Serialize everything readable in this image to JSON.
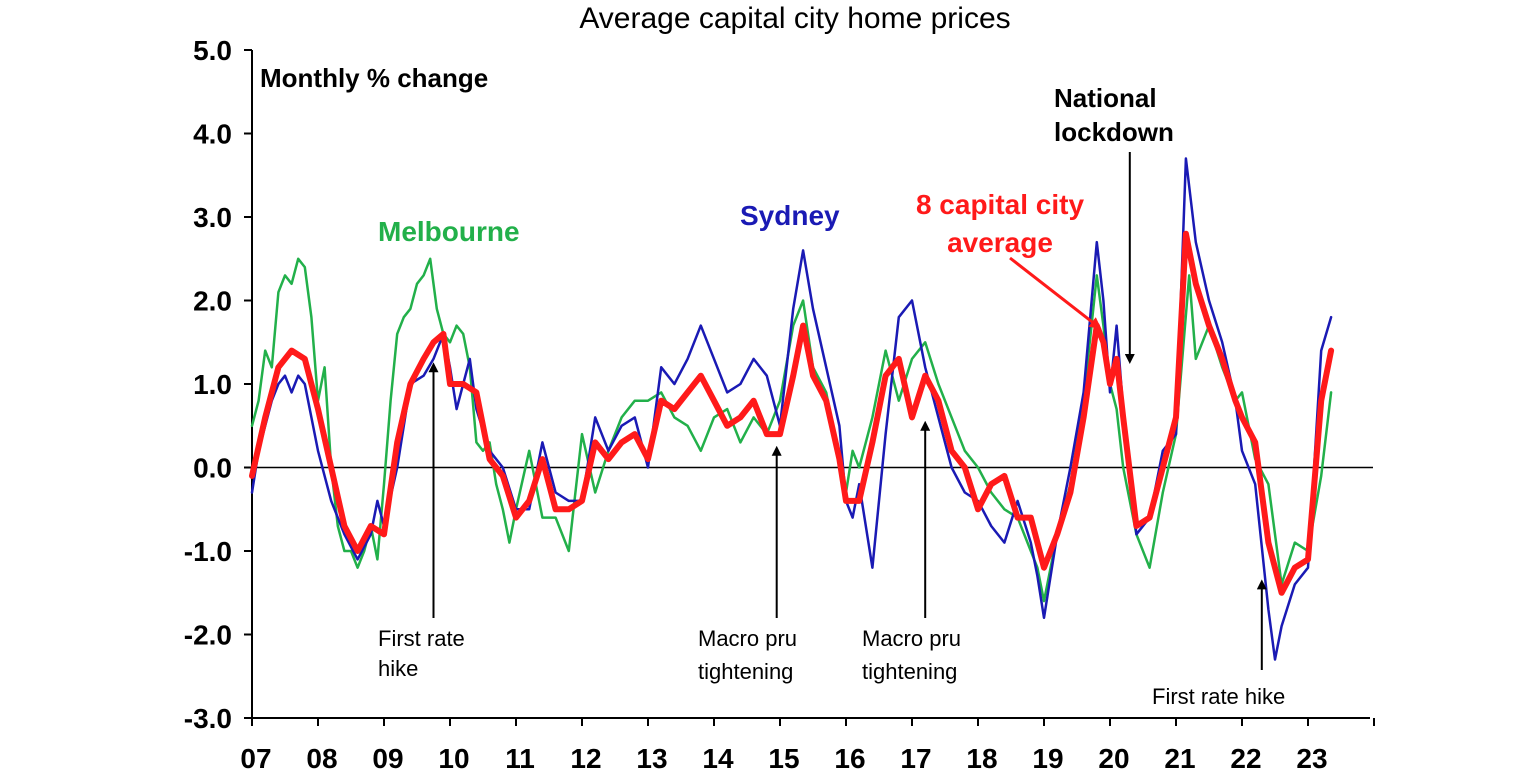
{
  "chart_data": {
    "type": "line",
    "title": "Average capital city home prices",
    "ylabel": "Monthly % change",
    "xlabel": "",
    "ylim": [
      -3.0,
      5.0
    ],
    "xlim": [
      2007.0,
      2024.0
    ],
    "y_ticks": [
      "5.0",
      "4.0",
      "3.0",
      "2.0",
      "1.0",
      "0.0",
      "-1.0",
      "-2.0",
      "-3.0"
    ],
    "y_tick_values": [
      5,
      4,
      3,
      2,
      1,
      0,
      -1,
      -2,
      -3
    ],
    "x_ticks": [
      "07",
      "08",
      "09",
      "10",
      "11",
      "12",
      "13",
      "14",
      "15",
      "16",
      "17",
      "18",
      "19",
      "20",
      "21",
      "22",
      "23"
    ],
    "grid": false,
    "series": [
      {
        "name": "Melbourne",
        "color": "#22b04a",
        "x": [
          2007.0,
          2007.1,
          2007.2,
          2007.3,
          2007.4,
          2007.5,
          2007.6,
          2007.7,
          2007.8,
          2007.9,
          2008.0,
          2008.1,
          2008.2,
          2008.3,
          2008.4,
          2008.5,
          2008.6,
          2008.7,
          2008.8,
          2008.9,
          2009.0,
          2009.1,
          2009.2,
          2009.3,
          2009.4,
          2009.5,
          2009.6,
          2009.7,
          2009.8,
          2009.9,
          2010.0,
          2010.1,
          2010.2,
          2010.3,
          2010.4,
          2010.5,
          2010.6,
          2010.7,
          2010.8,
          2010.9,
          2011.0,
          2011.2,
          2011.4,
          2011.6,
          2011.8,
          2012.0,
          2012.2,
          2012.4,
          2012.6,
          2012.8,
          2013.0,
          2013.2,
          2013.4,
          2013.6,
          2013.8,
          2014.0,
          2014.2,
          2014.4,
          2014.6,
          2014.8,
          2015.0,
          2015.2,
          2015.35,
          2015.5,
          2015.7,
          2015.9,
          2016.0,
          2016.1,
          2016.2,
          2016.4,
          2016.6,
          2016.8,
          2017.0,
          2017.2,
          2017.4,
          2017.6,
          2017.8,
          2018.0,
          2018.2,
          2018.4,
          2018.6,
          2018.8,
          2018.9,
          2019.0,
          2019.2,
          2019.4,
          2019.6,
          2019.8,
          2019.9,
          2020.0,
          2020.1,
          2020.2,
          2020.4,
          2020.6,
          2020.8,
          2021.0,
          2021.2,
          2021.3,
          2021.5,
          2021.7,
          2021.9,
          2022.0,
          2022.2,
          2022.4,
          2022.6,
          2022.8,
          2023.0,
          2023.2,
          2023.35
        ],
        "values": [
          0.5,
          0.8,
          1.4,
          1.2,
          2.1,
          2.3,
          2.2,
          2.5,
          2.4,
          1.8,
          0.8,
          1.2,
          0.0,
          -0.7,
          -1.0,
          -1.0,
          -1.2,
          -1.0,
          -0.7,
          -1.1,
          -0.2,
          0.8,
          1.6,
          1.8,
          1.9,
          2.2,
          2.3,
          2.5,
          1.9,
          1.6,
          1.5,
          1.7,
          1.6,
          1.2,
          0.3,
          0.2,
          0.3,
          -0.2,
          -0.5,
          -0.9,
          -0.5,
          0.2,
          -0.6,
          -0.6,
          -1.0,
          0.4,
          -0.3,
          0.2,
          0.6,
          0.8,
          0.8,
          0.9,
          0.6,
          0.5,
          0.2,
          0.6,
          0.7,
          0.3,
          0.6,
          0.4,
          0.8,
          1.7,
          2.0,
          1.2,
          0.9,
          0.1,
          -0.3,
          0.2,
          0.0,
          0.6,
          1.4,
          0.8,
          1.3,
          1.5,
          1.0,
          0.6,
          0.2,
          0.0,
          -0.3,
          -0.5,
          -0.6,
          -1.0,
          -1.2,
          -1.6,
          -0.8,
          -0.2,
          0.8,
          2.3,
          1.7,
          1.0,
          0.7,
          0.0,
          -0.8,
          -1.2,
          -0.3,
          0.4,
          2.3,
          1.3,
          1.7,
          1.2,
          0.8,
          0.9,
          0.1,
          -0.2,
          -1.4,
          -0.9,
          -1.0,
          -0.1,
          0.9
        ]
      },
      {
        "name": "Sydney",
        "color": "#1a1ab4",
        "x": [
          2007.0,
          2007.1,
          2007.2,
          2007.3,
          2007.4,
          2007.5,
          2007.6,
          2007.7,
          2007.8,
          2007.9,
          2008.0,
          2008.2,
          2008.4,
          2008.6,
          2008.8,
          2008.9,
          2009.0,
          2009.2,
          2009.4,
          2009.6,
          2009.75,
          2009.9,
          2010.0,
          2010.1,
          2010.2,
          2010.3,
          2010.4,
          2010.6,
          2010.8,
          2011.0,
          2011.2,
          2011.4,
          2011.6,
          2011.8,
          2012.0,
          2012.2,
          2012.4,
          2012.6,
          2012.8,
          2013.0,
          2013.2,
          2013.4,
          2013.6,
          2013.8,
          2014.0,
          2014.2,
          2014.4,
          2014.6,
          2014.8,
          2015.0,
          2015.2,
          2015.35,
          2015.5,
          2015.7,
          2015.9,
          2016.0,
          2016.1,
          2016.2,
          2016.4,
          2016.6,
          2016.8,
          2017.0,
          2017.2,
          2017.4,
          2017.6,
          2017.8,
          2018.0,
          2018.2,
          2018.4,
          2018.6,
          2018.8,
          2018.9,
          2019.0,
          2019.2,
          2019.4,
          2019.6,
          2019.8,
          2019.9,
          2020.0,
          2020.1,
          2020.2,
          2020.4,
          2020.6,
          2020.8,
          2021.0,
          2021.15,
          2021.3,
          2021.5,
          2021.7,
          2021.9,
          2022.0,
          2022.2,
          2022.4,
          2022.5,
          2022.6,
          2022.8,
          2023.0,
          2023.2,
          2023.35
        ],
        "values": [
          -0.3,
          0.2,
          0.5,
          0.8,
          1.0,
          1.1,
          0.9,
          1.1,
          1.0,
          0.6,
          0.2,
          -0.4,
          -0.8,
          -1.1,
          -0.8,
          -0.4,
          -0.7,
          0.0,
          1.0,
          1.1,
          1.3,
          1.6,
          1.2,
          0.7,
          1.0,
          1.3,
          0.7,
          0.2,
          0.0,
          -0.5,
          -0.5,
          0.3,
          -0.3,
          -0.4,
          -0.4,
          0.6,
          0.2,
          0.5,
          0.6,
          0.0,
          1.2,
          1.0,
          1.3,
          1.7,
          1.3,
          0.9,
          1.0,
          1.3,
          1.1,
          0.5,
          1.9,
          2.6,
          1.9,
          1.2,
          0.5,
          -0.4,
          -0.6,
          -0.2,
          -1.2,
          0.4,
          1.8,
          2.0,
          1.2,
          0.6,
          0.0,
          -0.3,
          -0.4,
          -0.7,
          -0.9,
          -0.4,
          -0.9,
          -1.3,
          -1.8,
          -0.8,
          0.0,
          0.9,
          2.7,
          2.0,
          0.9,
          1.7,
          0.7,
          -0.8,
          -0.6,
          0.2,
          0.4,
          3.7,
          2.7,
          2.0,
          1.5,
          0.8,
          0.2,
          -0.2,
          -1.7,
          -2.3,
          -1.9,
          -1.4,
          -1.2,
          1.4,
          1.8
        ]
      },
      {
        "name": "8 capital city average",
        "color": "#ff1a1a",
        "x": [
          2007.0,
          2007.2,
          2007.4,
          2007.6,
          2007.8,
          2008.0,
          2008.2,
          2008.4,
          2008.6,
          2008.8,
          2009.0,
          2009.2,
          2009.4,
          2009.6,
          2009.75,
          2009.9,
          2010.0,
          2010.2,
          2010.4,
          2010.6,
          2010.8,
          2011.0,
          2011.2,
          2011.4,
          2011.6,
          2011.8,
          2012.0,
          2012.2,
          2012.4,
          2012.6,
          2012.8,
          2013.0,
          2013.2,
          2013.4,
          2013.6,
          2013.8,
          2014.0,
          2014.2,
          2014.4,
          2014.6,
          2014.8,
          2015.0,
          2015.2,
          2015.35,
          2015.5,
          2015.7,
          2015.9,
          2016.0,
          2016.2,
          2016.4,
          2016.6,
          2016.8,
          2017.0,
          2017.2,
          2017.4,
          2017.6,
          2017.8,
          2018.0,
          2018.2,
          2018.4,
          2018.6,
          2018.8,
          2018.9,
          2019.0,
          2019.2,
          2019.4,
          2019.6,
          2019.8,
          2019.9,
          2020.0,
          2020.1,
          2020.2,
          2020.4,
          2020.6,
          2020.8,
          2021.0,
          2021.15,
          2021.3,
          2021.5,
          2021.7,
          2021.9,
          2022.0,
          2022.2,
          2022.4,
          2022.6,
          2022.8,
          2023.0,
          2023.2,
          2023.35
        ],
        "values": [
          -0.1,
          0.6,
          1.2,
          1.4,
          1.3,
          0.7,
          0.0,
          -0.7,
          -1.0,
          -0.7,
          -0.8,
          0.3,
          1.0,
          1.3,
          1.5,
          1.6,
          1.0,
          1.0,
          0.9,
          0.1,
          -0.1,
          -0.6,
          -0.4,
          0.1,
          -0.5,
          -0.5,
          -0.4,
          0.3,
          0.1,
          0.3,
          0.4,
          0.1,
          0.8,
          0.7,
          0.9,
          1.1,
          0.8,
          0.5,
          0.6,
          0.8,
          0.4,
          0.4,
          1.1,
          1.7,
          1.1,
          0.8,
          0.1,
          -0.4,
          -0.4,
          0.3,
          1.1,
          1.3,
          0.6,
          1.1,
          0.8,
          0.2,
          0.0,
          -0.5,
          -0.2,
          -0.1,
          -0.6,
          -0.6,
          -0.9,
          -1.2,
          -0.8,
          -0.3,
          0.6,
          1.7,
          1.5,
          1.0,
          1.3,
          0.6,
          -0.7,
          -0.6,
          0.0,
          0.6,
          2.8,
          2.2,
          1.7,
          1.3,
          0.8,
          0.6,
          0.3,
          -0.9,
          -1.5,
          -1.2,
          -1.1,
          0.8,
          1.4
        ]
      }
    ],
    "annotations": [
      {
        "text_lines": [
          "First rate",
          "hike"
        ],
        "arrow_x": 2009.75,
        "arrow_y": 1.2
      },
      {
        "text_lines": [
          "Macro pru",
          "tightening"
        ],
        "arrow_x": 2014.95,
        "arrow_y": 0.2
      },
      {
        "text_lines": [
          "Macro pru",
          "tightening"
        ],
        "arrow_x": 2017.2,
        "arrow_y": 0.5
      },
      {
        "text_lines": [
          "First rate hike"
        ],
        "arrow_x": 2022.3,
        "arrow_y": -1.4
      },
      {
        "text_lines": [
          "National",
          "lockdown"
        ],
        "arrow_x": 2020.3,
        "arrow_y": 1.3
      }
    ],
    "series_labels": [
      {
        "text": "Melbourne",
        "color": "#22b04a"
      },
      {
        "text": "Sydney",
        "color": "#1a1ab4"
      },
      {
        "text_lines": [
          "8 capital city",
          "average"
        ],
        "color": "#ff1a1a"
      }
    ]
  }
}
